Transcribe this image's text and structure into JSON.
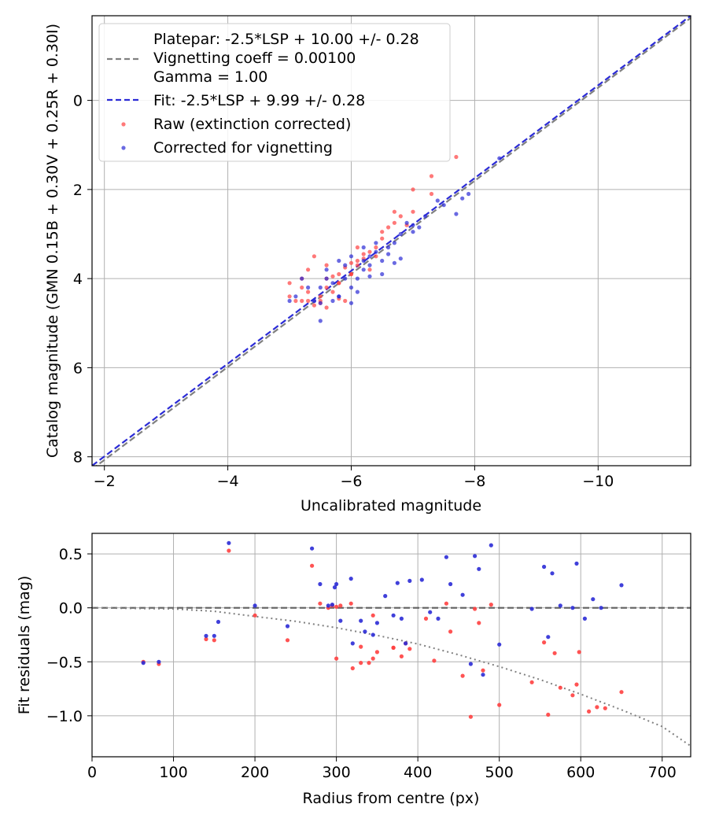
{
  "chart_data": [
    {
      "type": "scatter",
      "xlabel": "Uncalibrated magnitude",
      "ylabel": "Catalog magnitude (GMN 0.15B + 0.30V + 0.25R + 0.30I)",
      "xlim": [
        -1.8,
        -11.5
      ],
      "ylim": [
        8.2,
        -1.9
      ],
      "xticks": [
        -2,
        -4,
        -6,
        -8,
        -10
      ],
      "xtick_labels": [
        "−2",
        "−4",
        "−6",
        "−8",
        "−10"
      ],
      "yticks": [
        0,
        2,
        4,
        6,
        8
      ],
      "ytick_labels": [
        "0",
        "2",
        "4",
        "6",
        "8"
      ],
      "grid": true,
      "legend_position": "top-left",
      "legend": [
        {
          "text": "Platepar: -2.5*LSP + 10.00 +/- 0.28"
        },
        {
          "text": "Vignetting coeff = 0.00100"
        },
        {
          "text": "Gamma = 1.00"
        },
        {
          "text": "Fit: -2.5*LSP + 9.99 +/- 0.28"
        },
        {
          "text": "Raw (extinction corrected)"
        },
        {
          "text": "Corrected for vignetting"
        }
      ],
      "lines": [
        {
          "name": "Platepar",
          "style": "dashed",
          "color": "#808080",
          "x": [
            -1.8,
            -11.5
          ],
          "y": [
            8.28,
            -1.85
          ]
        },
        {
          "name": "Fit",
          "style": "dashed",
          "color": "#2b2bd6",
          "x": [
            -1.8,
            -11.5
          ],
          "y": [
            8.2,
            -1.9
          ]
        }
      ],
      "series": [
        {
          "name": "Raw (extinction corrected)",
          "color": "#ff4040",
          "x": [
            -7.7,
            -7.3,
            -7.3,
            -7.0,
            -7.0,
            -6.8,
            -6.9,
            -6.7,
            -6.7,
            -6.6,
            -6.5,
            -6.5,
            -6.3,
            -6.4,
            -6.2,
            -6.1,
            -6.1,
            -6.0,
            -6.0,
            -6.2,
            -5.9,
            -5.8,
            -5.8,
            -5.7,
            -5.6,
            -5.6,
            -5.7,
            -5.5,
            -5.5,
            -5.4,
            -5.3,
            -5.3,
            -5.2,
            -5.2,
            -5.1,
            -5.0,
            -5.0,
            -5.6,
            -5.9,
            -6.3,
            -5.4,
            -5.8,
            -6.1,
            -5.5,
            -5.2,
            -6.4,
            -5.6,
            -6.0,
            -5.3,
            -5.8
          ],
          "y": [
            1.27,
            1.7,
            2.1,
            2.0,
            2.5,
            2.6,
            2.8,
            2.5,
            2.75,
            2.85,
            2.95,
            3.1,
            3.4,
            3.5,
            3.55,
            3.3,
            3.6,
            3.65,
            3.9,
            3.45,
            3.75,
            3.9,
            4.1,
            3.95,
            4.0,
            4.2,
            4.3,
            4.4,
            4.5,
            4.6,
            4.5,
            4.3,
            4.5,
            4.2,
            4.5,
            4.1,
            4.4,
            3.7,
            4.5,
            3.8,
            3.5,
            4.1,
            3.7,
            4.55,
            4.0,
            3.3,
            4.65,
            3.9,
            3.8,
            4.45
          ]
        },
        {
          "name": "Corrected for vignetting",
          "color": "#2b2bd6",
          "x": [
            -8.4,
            -7.9,
            -7.8,
            -7.7,
            -7.5,
            -7.4,
            -7.2,
            -7.1,
            -7.0,
            -7.0,
            -6.9,
            -6.8,
            -6.8,
            -6.7,
            -6.6,
            -6.6,
            -6.5,
            -6.4,
            -6.3,
            -6.3,
            -6.2,
            -6.2,
            -6.1,
            -6.0,
            -6.0,
            -5.9,
            -5.8,
            -5.8,
            -5.7,
            -5.6,
            -5.5,
            -5.5,
            -5.4,
            -5.3,
            -5.2,
            -5.1,
            -5.7,
            -6.4,
            -6.0,
            -5.9,
            -5.5,
            -6.5,
            -6.1,
            -5.6,
            -5.8,
            -6.3,
            -5.4,
            -6.7,
            -5.0,
            -6.2
          ],
          "y": [
            1.3,
            2.1,
            2.2,
            2.55,
            2.35,
            2.25,
            2.6,
            2.85,
            2.8,
            2.95,
            2.75,
            3.0,
            3.55,
            3.2,
            3.3,
            3.45,
            3.6,
            3.2,
            3.7,
            3.95,
            3.6,
            3.8,
            4.0,
            3.5,
            4.2,
            4.0,
            3.6,
            4.4,
            4.5,
            4.0,
            4.2,
            4.55,
            4.5,
            4.2,
            4.0,
            4.4,
            4.1,
            3.4,
            4.55,
            3.7,
            4.95,
            3.9,
            4.3,
            3.8,
            4.4,
            3.5,
            4.5,
            3.65,
            4.5,
            3.3
          ]
        }
      ]
    },
    {
      "type": "scatter",
      "xlabel": "Radius from centre (px)",
      "ylabel": "Fit residuals (mag)",
      "xlim": [
        0,
        735
      ],
      "ylim": [
        -1.38,
        0.69
      ],
      "xticks": [
        0,
        100,
        200,
        300,
        400,
        500,
        600,
        700
      ],
      "xtick_labels": [
        "0",
        "100",
        "200",
        "300",
        "400",
        "500",
        "600",
        "700"
      ],
      "yticks": [
        0.5,
        0.0,
        -0.5,
        -1.0
      ],
      "ytick_labels": [
        "0.5",
        "0.0",
        "−0.5",
        "−1.0"
      ],
      "grid": true,
      "lines": [
        {
          "name": "zero",
          "style": "dashed",
          "color": "#606060",
          "x": [
            0,
            735
          ],
          "y": [
            0,
            0
          ]
        },
        {
          "name": "vignetting model",
          "style": "dotted",
          "color": "#808080",
          "x": [
            0,
            50,
            100,
            150,
            200,
            250,
            300,
            350,
            400,
            450,
            500,
            550,
            600,
            650,
            700,
            735
          ],
          "y": [
            0,
            -0.005,
            -0.01,
            -0.032,
            -0.08,
            -0.125,
            -0.185,
            -0.255,
            -0.335,
            -0.435,
            -0.545,
            -0.665,
            -0.8,
            -0.945,
            -1.1,
            -1.28
          ]
        }
      ],
      "series": [
        {
          "name": "Raw (extinction corrected)",
          "color": "#ff4040",
          "x": [
            63,
            82,
            140,
            150,
            168,
            200,
            240,
            270,
            280,
            290,
            295,
            300,
            305,
            318,
            320,
            330,
            330,
            340,
            345,
            350,
            370,
            380,
            385,
            390,
            410,
            420,
            435,
            440,
            455,
            465,
            470,
            475,
            480,
            490,
            500,
            540,
            555,
            560,
            568,
            575,
            590,
            595,
            598,
            610,
            620,
            630,
            650,
            300,
            370,
            345
          ],
          "y": [
            -0.5,
            -0.52,
            -0.29,
            -0.3,
            0.53,
            -0.07,
            -0.3,
            0.39,
            0.04,
            0.0,
            0.02,
            -0.47,
            0.02,
            0.04,
            -0.56,
            -0.36,
            -0.51,
            -0.51,
            -0.47,
            -0.41,
            -0.37,
            -0.45,
            -0.33,
            -0.38,
            -0.1,
            -0.49,
            0.04,
            -0.22,
            -0.63,
            -1.01,
            -0.01,
            -0.14,
            -0.58,
            0.03,
            -0.9,
            -0.69,
            -0.32,
            -0.99,
            -0.42,
            -0.74,
            -0.81,
            -0.71,
            -0.41,
            -0.96,
            -0.92,
            -0.93,
            -0.78,
            0.01,
            -0.37,
            -0.07
          ]
        },
        {
          "name": "Corrected for vignetting",
          "color": "#2b2bd6",
          "x": [
            63,
            82,
            140,
            150,
            155,
            168,
            200,
            240,
            270,
            280,
            290,
            295,
            298,
            300,
            305,
            318,
            320,
            330,
            335,
            345,
            350,
            360,
            370,
            375,
            380,
            385,
            390,
            405,
            415,
            425,
            435,
            440,
            455,
            465,
            470,
            475,
            480,
            490,
            500,
            540,
            555,
            560,
            565,
            575,
            590,
            595,
            605,
            615,
            625,
            650
          ],
          "y": [
            -0.51,
            -0.5,
            -0.26,
            -0.26,
            -0.13,
            0.6,
            0.02,
            -0.17,
            0.55,
            0.22,
            0.02,
            0.03,
            0.19,
            0.22,
            -0.12,
            0.27,
            -0.33,
            -0.12,
            -0.22,
            -0.25,
            -0.14,
            0.11,
            -0.07,
            0.23,
            -0.1,
            -0.33,
            0.25,
            0.26,
            -0.04,
            -0.1,
            0.47,
            0.22,
            0.12,
            -0.52,
            0.48,
            0.36,
            -0.62,
            0.58,
            -0.34,
            -0.01,
            0.38,
            -0.27,
            0.32,
            0.02,
            0.0,
            0.41,
            -0.1,
            0.08,
            0.0,
            0.21
          ]
        }
      ]
    }
  ]
}
